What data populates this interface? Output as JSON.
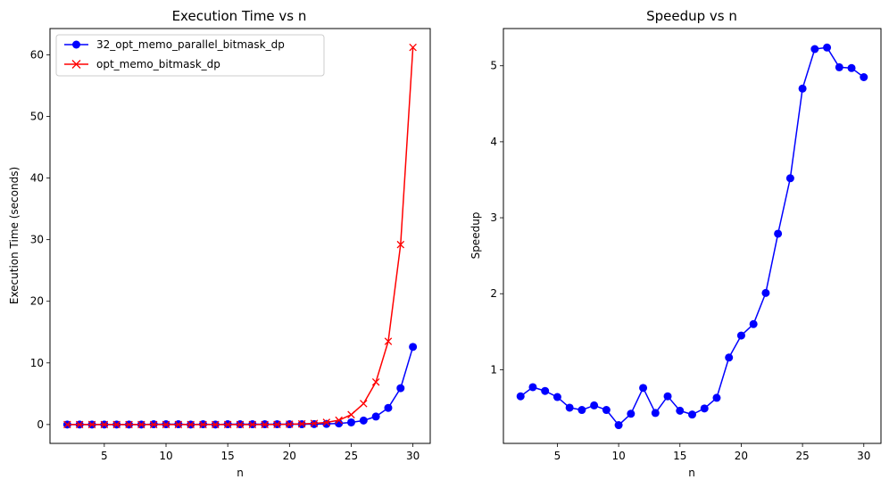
{
  "chart_data": [
    {
      "type": "line",
      "title": "Execution Time vs n",
      "xlabel": "n",
      "ylabel": "Execution Time (seconds)",
      "xlim": [
        0.6,
        31.4
      ],
      "ylim": [
        -3.06,
        64.26
      ],
      "xticks": [
        5,
        10,
        15,
        20,
        25,
        30
      ],
      "yticks": [
        0,
        10,
        20,
        30,
        40,
        50,
        60
      ],
      "legend_position": "top-left",
      "x": [
        2,
        3,
        4,
        5,
        6,
        7,
        8,
        9,
        10,
        11,
        12,
        13,
        14,
        15,
        16,
        17,
        18,
        19,
        20,
        21,
        22,
        23,
        24,
        25,
        26,
        27,
        28,
        29,
        30
      ],
      "series": [
        {
          "name": "32_opt_memo_parallel_bitmask_dp",
          "color": "#0000ff",
          "marker": "circle",
          "values": [
            0.0,
            0.0,
            0.0,
            0.0,
            0.0,
            0.0,
            0.0,
            0.05,
            0.05,
            0.05,
            0.0,
            0.05,
            0.0,
            0.05,
            0.05,
            0.05,
            0.05,
            0.05,
            0.05,
            0.05,
            0.07,
            0.1,
            0.18,
            0.35,
            0.65,
            1.3,
            2.7,
            5.9,
            12.6
          ]
        },
        {
          "name": "opt_memo_bitmask_dp",
          "color": "#ff0000",
          "marker": "x",
          "values": [
            0.0,
            0.0,
            0.0,
            0.0,
            0.0,
            0.0,
            0.0,
            0.0,
            0.0,
            0.0,
            0.0,
            0.0,
            0.0,
            0.0,
            0.0,
            0.0,
            0.0,
            0.02,
            0.05,
            0.1,
            0.18,
            0.35,
            0.7,
            1.6,
            3.4,
            6.9,
            13.5,
            29.2,
            61.2
          ]
        }
      ]
    },
    {
      "type": "line",
      "title": "Speedup vs n",
      "xlabel": "n",
      "ylabel": "Speedup",
      "xlim": [
        0.6,
        31.4
      ],
      "ylim": [
        0.03,
        5.49
      ],
      "xticks": [
        5,
        10,
        15,
        20,
        25,
        30
      ],
      "yticks": [
        1,
        2,
        3,
        4,
        5
      ],
      "x": [
        2,
        3,
        4,
        5,
        6,
        7,
        8,
        9,
        10,
        11,
        12,
        13,
        14,
        15,
        16,
        17,
        18,
        19,
        20,
        21,
        22,
        23,
        24,
        25,
        26,
        27,
        28,
        29,
        30
      ],
      "series": [
        {
          "name": "Speedup",
          "color": "#0000ff",
          "marker": "circle",
          "values": [
            0.65,
            0.77,
            0.72,
            0.64,
            0.5,
            0.47,
            0.53,
            0.47,
            0.27,
            0.42,
            0.76,
            0.43,
            0.65,
            0.46,
            0.41,
            0.49,
            0.63,
            1.16,
            1.45,
            1.6,
            2.01,
            2.79,
            3.52,
            4.7,
            5.22,
            5.24,
            4.98,
            4.97,
            4.85
          ]
        }
      ]
    }
  ]
}
